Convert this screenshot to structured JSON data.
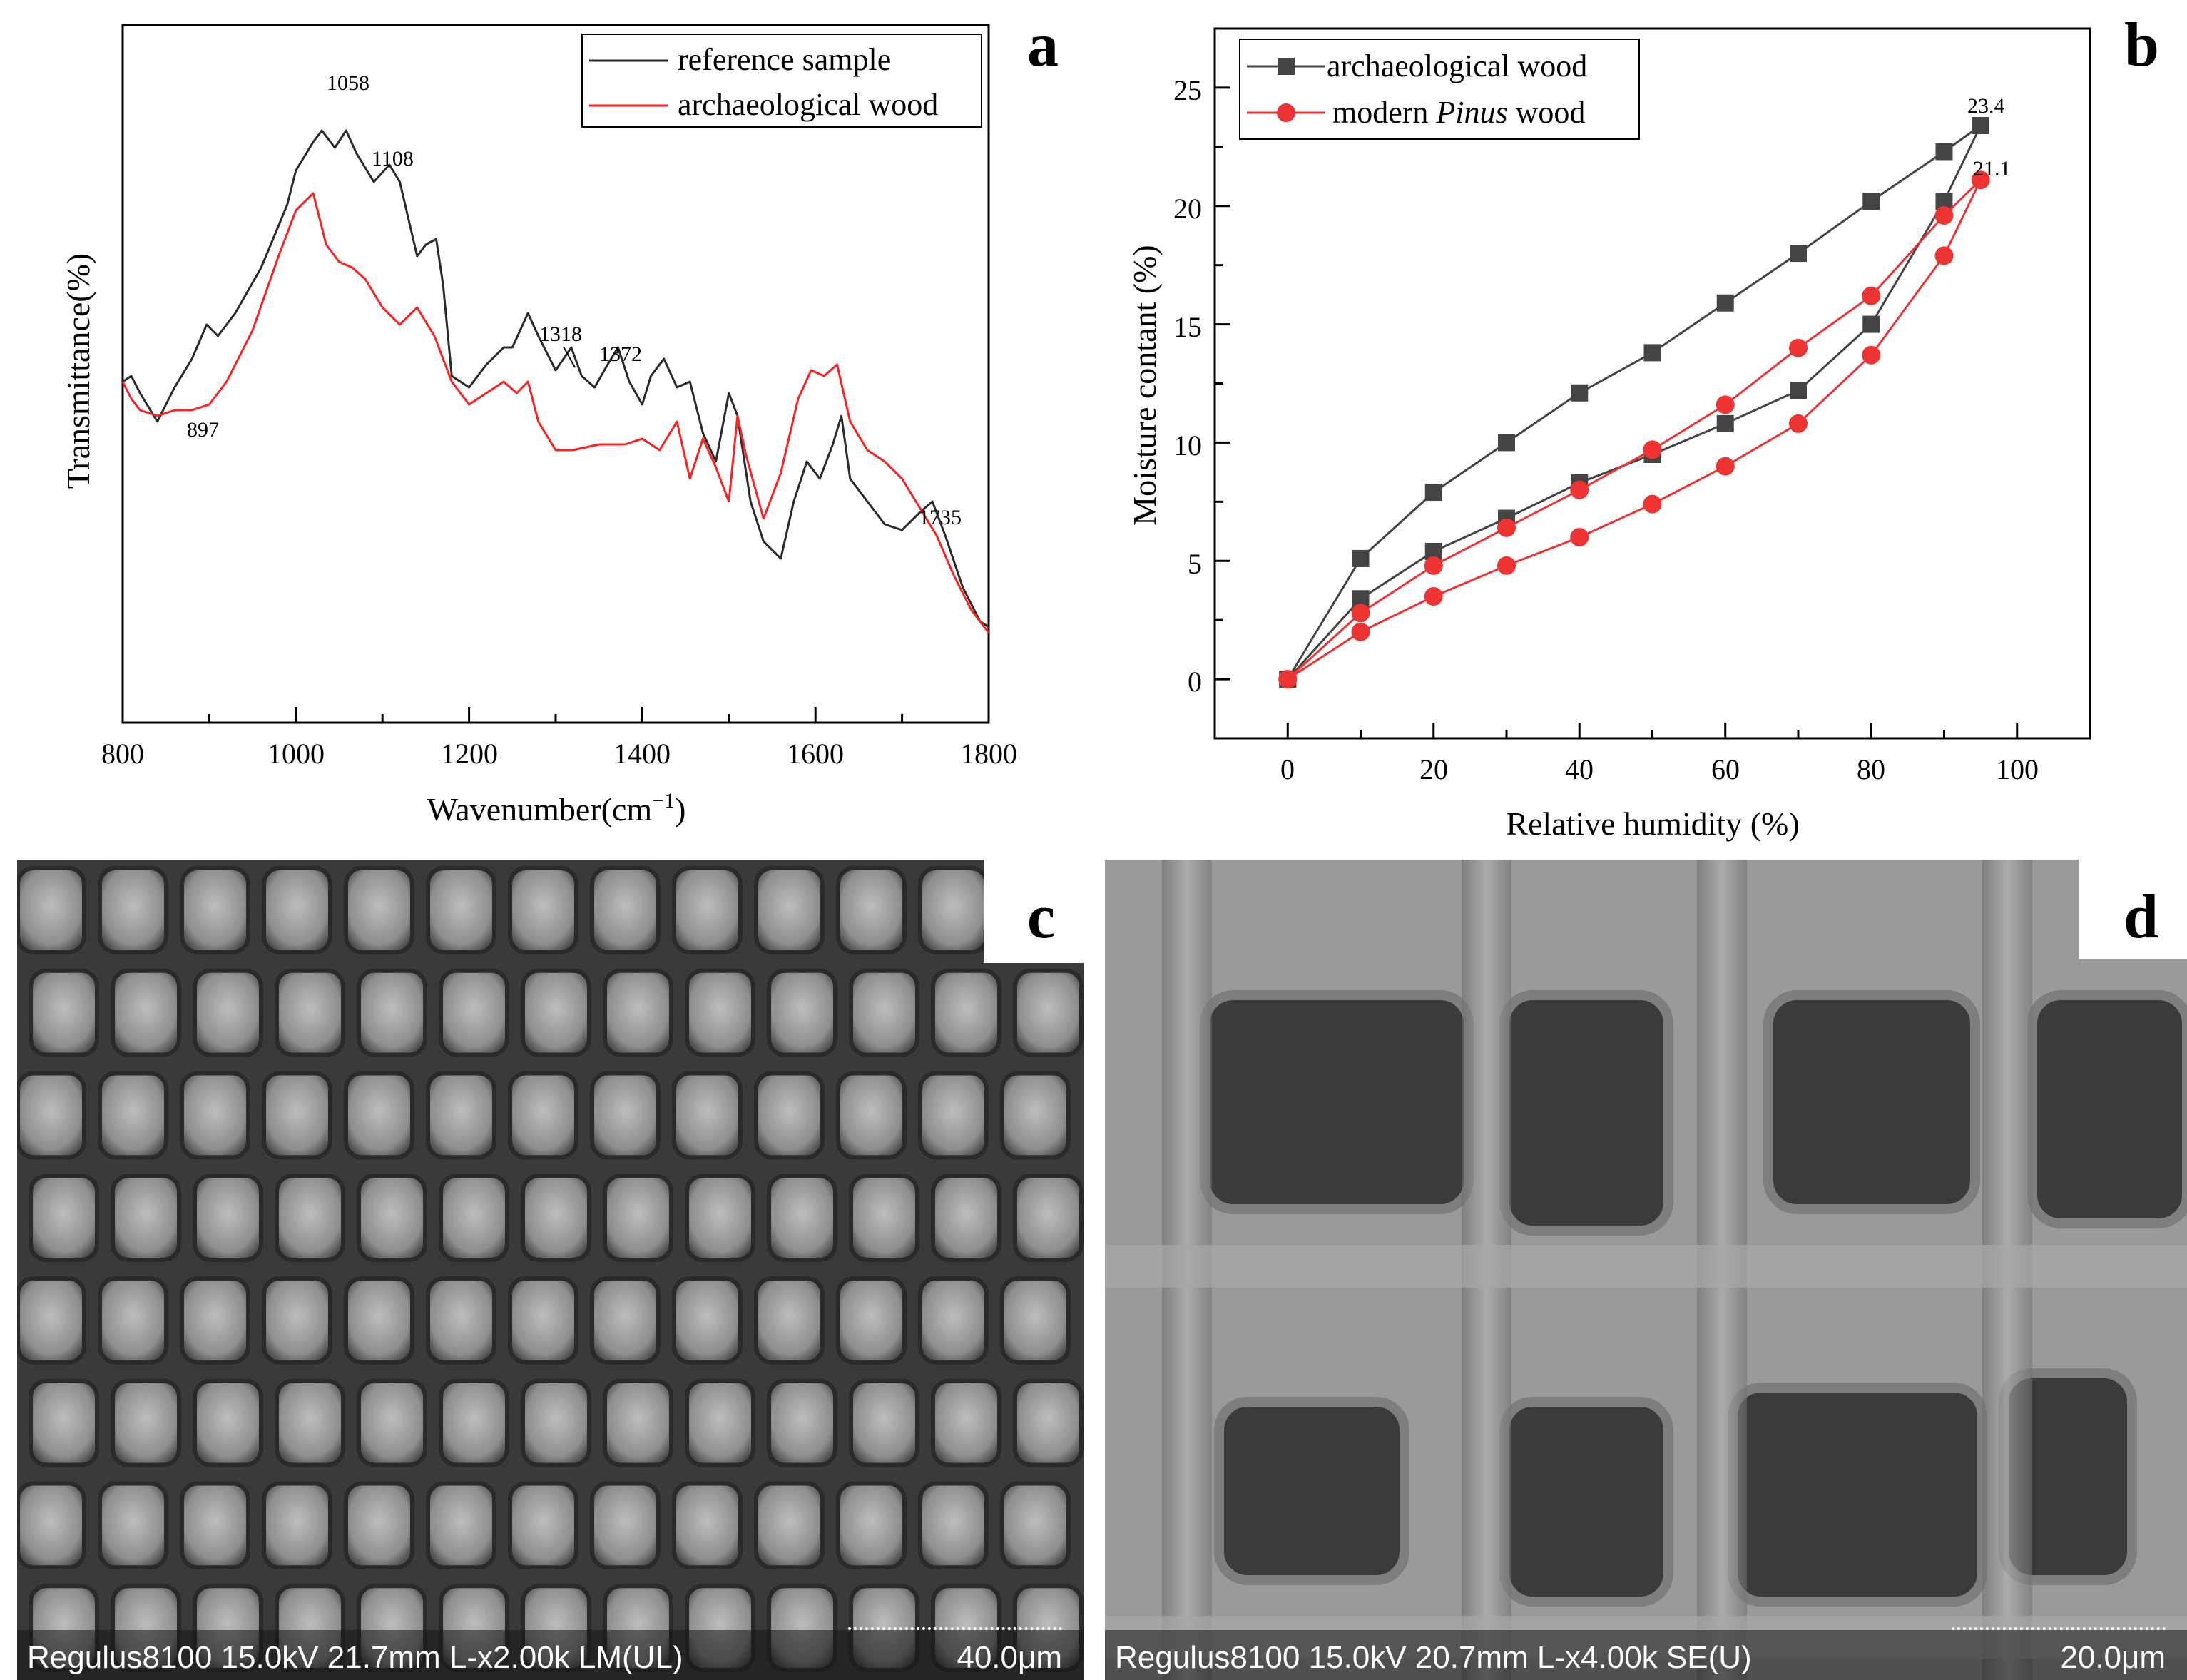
{
  "panels": {
    "a": {
      "label": "a",
      "xlabel": "Wavenumber(cm",
      "xlabel_sup": "−1",
      "xlabel_close": ")",
      "ylabel": "Transmittance(%)",
      "legend": [
        "reference sample",
        "archaeological wood"
      ],
      "x_ticks": [
        "800",
        "1000",
        "1200",
        "1400",
        "1600",
        "1800"
      ],
      "annotations": [
        "1058",
        "1108",
        "897",
        "1318",
        "1372",
        "1735"
      ]
    },
    "b": {
      "label": "b",
      "xlabel": "Relative humidity (%)",
      "ylabel": "Moisture contant (%)",
      "legend_1": "archaeological wood",
      "legend_2_pre": "modern ",
      "legend_2_italic": "Pinus",
      "legend_2_post": " wood",
      "x_ticks": [
        "0",
        "20",
        "40",
        "60",
        "80",
        "100"
      ],
      "y_ticks": [
        "0",
        "5",
        "10",
        "15",
        "20",
        "25"
      ],
      "annotations": [
        "23.4",
        "21.1"
      ]
    },
    "c": {
      "label": "c",
      "caption": "Regulus8100 15.0kV 21.7mm L-x2.00k LM(UL)",
      "scale": "40.0μm"
    },
    "d": {
      "label": "d",
      "caption": "Regulus8100 15.0kV 20.7mm L-x4.00k SE(U)",
      "scale": "20.0μm"
    }
  },
  "colors": {
    "reference": "#2b2b2b",
    "archaeological": "#ff2020",
    "archaeological_b": "#444444",
    "modern": "#ee3333"
  },
  "chart_data": [
    {
      "type": "line",
      "panel": "a",
      "xlim": [
        800,
        1800
      ],
      "series": [
        {
          "name": "reference sample",
          "x": [
            800,
            810,
            820,
            840,
            860,
            880,
            897,
            910,
            930,
            960,
            990,
            1000,
            1020,
            1030,
            1045,
            1058,
            1070,
            1090,
            1108,
            1120,
            1140,
            1150,
            1162,
            1170,
            1180,
            1200,
            1220,
            1240,
            1250,
            1268,
            1280,
            1300,
            1318,
            1330,
            1345,
            1360,
            1372,
            1385,
            1400,
            1410,
            1425,
            1440,
            1455,
            1470,
            1485,
            1500,
            1510,
            1525,
            1540,
            1560,
            1575,
            1590,
            1605,
            1620,
            1630,
            1640,
            1660,
            1680,
            1700,
            1720,
            1735,
            1750,
            1770,
            1790,
            1800
          ],
          "y": [
            0.56,
            0.57,
            0.54,
            0.49,
            0.55,
            0.6,
            0.66,
            0.64,
            0.68,
            0.76,
            0.87,
            0.93,
            0.98,
            1.0,
            0.97,
            1.0,
            0.96,
            0.91,
            0.94,
            0.91,
            0.78,
            0.8,
            0.81,
            0.73,
            0.57,
            0.55,
            0.59,
            0.62,
            0.62,
            0.68,
            0.64,
            0.58,
            0.62,
            0.57,
            0.55,
            0.59,
            0.62,
            0.56,
            0.52,
            0.57,
            0.6,
            0.55,
            0.56,
            0.47,
            0.42,
            0.54,
            0.5,
            0.35,
            0.28,
            0.25,
            0.35,
            0.42,
            0.39,
            0.45,
            0.5,
            0.39,
            0.35,
            0.31,
            0.3,
            0.33,
            0.35,
            0.29,
            0.2,
            0.14,
            0.13
          ]
        },
        {
          "name": "archaeological wood",
          "x": [
            800,
            810,
            820,
            840,
            860,
            880,
            900,
            920,
            950,
            980,
            1000,
            1020,
            1035,
            1050,
            1065,
            1080,
            1100,
            1120,
            1140,
            1160,
            1180,
            1200,
            1220,
            1240,
            1255,
            1268,
            1280,
            1300,
            1320,
            1350,
            1380,
            1400,
            1420,
            1440,
            1455,
            1470,
            1485,
            1500,
            1510,
            1520,
            1540,
            1560,
            1580,
            1595,
            1610,
            1625,
            1640,
            1660,
            1680,
            1700,
            1720,
            1740,
            1760,
            1780,
            1800
          ],
          "y": [
            0.56,
            0.53,
            0.51,
            0.5,
            0.51,
            0.51,
            0.52,
            0.56,
            0.65,
            0.78,
            0.86,
            0.89,
            0.8,
            0.77,
            0.76,
            0.74,
            0.69,
            0.66,
            0.69,
            0.64,
            0.56,
            0.52,
            0.54,
            0.56,
            0.54,
            0.56,
            0.49,
            0.44,
            0.44,
            0.45,
            0.45,
            0.46,
            0.44,
            0.49,
            0.39,
            0.46,
            0.41,
            0.35,
            0.5,
            0.43,
            0.32,
            0.4,
            0.53,
            0.58,
            0.57,
            0.59,
            0.49,
            0.44,
            0.42,
            0.39,
            0.34,
            0.29,
            0.22,
            0.16,
            0.12
          ]
        }
      ]
    },
    {
      "type": "line",
      "panel": "b",
      "xlim": [
        -10,
        110
      ],
      "ylim": [
        -2.5,
        27.5
      ],
      "series": [
        {
          "name": "archaeological wood",
          "marker": "square",
          "x": [
            0,
            10,
            20,
            30,
            40,
            50,
            60,
            70,
            80,
            90,
            95,
            90,
            80,
            70,
            60,
            50,
            40,
            30,
            20,
            10,
            0
          ],
          "y": [
            0,
            3.4,
            5.4,
            6.8,
            8.3,
            9.5,
            10.8,
            12.2,
            15.0,
            20.2,
            23.4,
            22.3,
            20.2,
            18.0,
            15.9,
            13.8,
            12.1,
            10.0,
            7.9,
            5.1,
            0
          ]
        },
        {
          "name": "modern Pinus wood",
          "marker": "circle",
          "x": [
            0,
            10,
            20,
            30,
            40,
            50,
            60,
            70,
            80,
            90,
            95,
            90,
            80,
            70,
            60,
            50,
            40,
            30,
            20,
            10,
            0
          ],
          "y": [
            0,
            2.0,
            3.5,
            4.8,
            6.0,
            7.4,
            9.0,
            10.8,
            13.7,
            17.9,
            21.1,
            19.6,
            16.2,
            14.0,
            11.6,
            9.7,
            8.0,
            6.4,
            4.8,
            2.8,
            0
          ]
        }
      ]
    }
  ]
}
